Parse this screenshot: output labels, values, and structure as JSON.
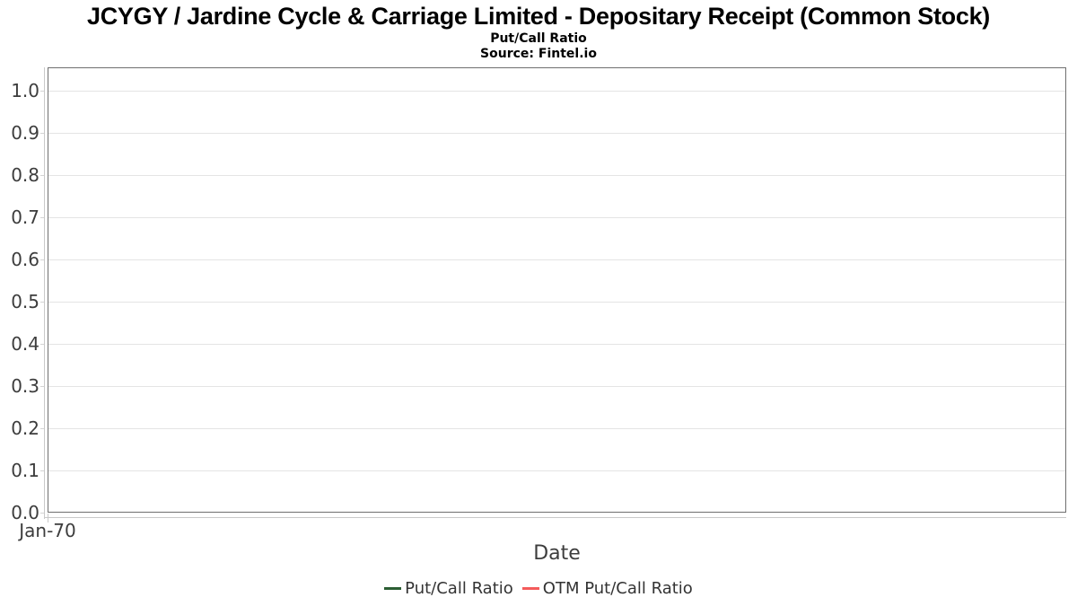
{
  "header": {
    "title": "JCYGY / Jardine Cycle & Carriage Limited - Depositary Receipt (Common Stock)",
    "subtitle": "Put/Call Ratio",
    "source": "Source: Fintel.io"
  },
  "chart_data": {
    "type": "line",
    "title": "JCYGY / Jardine Cycle & Carriage Limited - Depositary Receipt (Common Stock)",
    "subtitle": "Put/Call Ratio",
    "source": "Source: Fintel.io",
    "xlabel": "Date",
    "ylabel": "",
    "ylim": [
      0.0,
      1.055
    ],
    "yticks": [
      0.0,
      0.1,
      0.2,
      0.3,
      0.4,
      0.5,
      0.6,
      0.7,
      0.8,
      0.9,
      1.0
    ],
    "ytick_labels": [
      "0.0",
      "0.1",
      "0.2",
      "0.3",
      "0.4",
      "0.5",
      "0.6",
      "0.7",
      "0.8",
      "0.9",
      "1.0"
    ],
    "xtick_labels": [
      "Jan-70"
    ],
    "grid": "horizontal",
    "legend_position": "bottom-center",
    "series": [
      {
        "name": "Put/Call Ratio",
        "color": "#2b5e33",
        "x": [],
        "values": []
      },
      {
        "name": "OTM Put/Call Ratio",
        "color": "#f45b5b",
        "x": [],
        "values": []
      }
    ]
  },
  "colors": {
    "background": "#ffffff",
    "plot_border": "#6f6f6f",
    "gridline": "#e4e4e4",
    "axis_spine": "#c9c9c9",
    "axis_text": "#3d3d3d",
    "legend_text": "#333333"
  }
}
